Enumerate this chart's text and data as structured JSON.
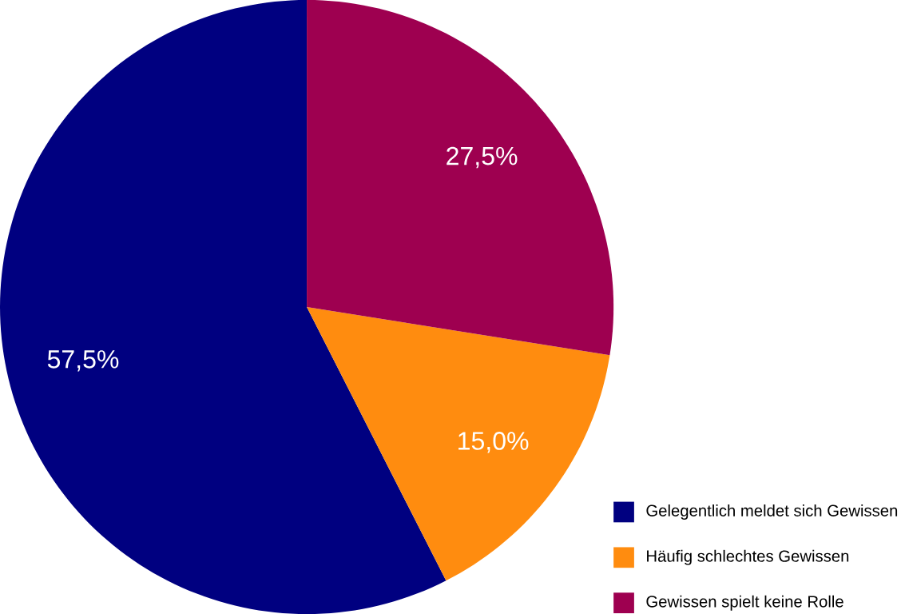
{
  "chart_data": {
    "type": "pie",
    "categories": [
      "Gelegentlich meldet sich Gewissen",
      "Häufig schlechtes Gewissen",
      "Gewissen spielt keine Rolle"
    ],
    "values": [
      57.5,
      15.0,
      27.5
    ],
    "value_labels": [
      "57,5%",
      "15,0%",
      "27,5%"
    ],
    "colors": [
      "#000080",
      "#ff8c0f",
      "#9e0050"
    ],
    "legend": "bottom right"
  }
}
